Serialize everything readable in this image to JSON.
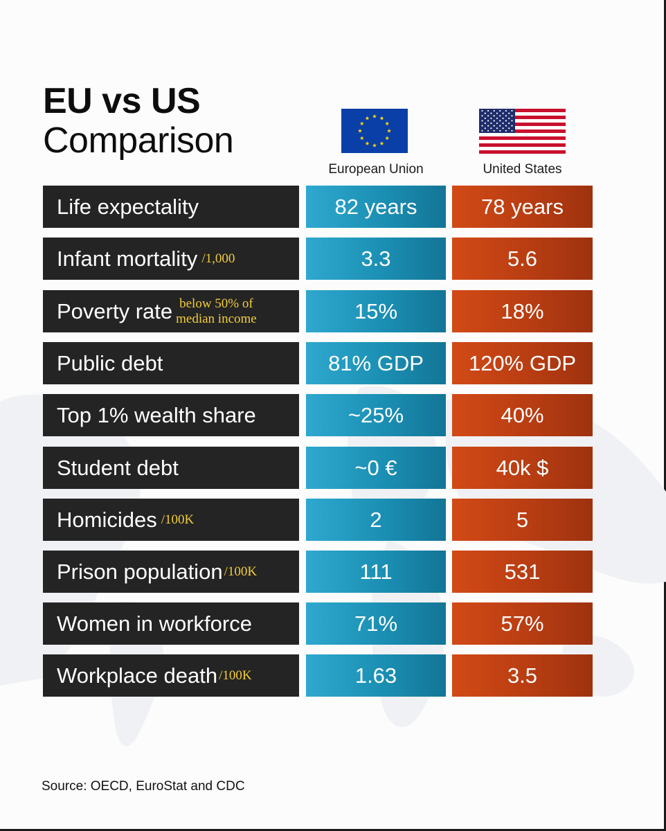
{
  "title": {
    "line1": "EU vs US",
    "line2": "Comparison"
  },
  "columns": {
    "eu": "European Union",
    "us": "United States"
  },
  "icons": {
    "eu_flag": "eu-flag-icon",
    "us_flag": "us-flag-icon"
  },
  "colors": {
    "eu_accent": "#1b8fb3",
    "us_accent": "#b83d12",
    "label_bg": "#242424",
    "unit_text": "#f3cd3a"
  },
  "rows": [
    {
      "label": "Life expectality",
      "unit": "",
      "eu": "82 years",
      "us": "78 years"
    },
    {
      "label": "Infant mortality",
      "unit": "/1,000",
      "eu": "3.3",
      "us": "5.6"
    },
    {
      "label": "Poverty rate",
      "unit_line1": "below 50% of",
      "unit_line2": "median income",
      "eu": "15%",
      "us": "18%"
    },
    {
      "label": "Public debt",
      "unit": "",
      "eu": "81% GDP",
      "us": "120% GDP"
    },
    {
      "label": "Top 1% wealth share",
      "unit": "",
      "eu": "~25%",
      "us": "40%"
    },
    {
      "label": "Student debt",
      "unit": "",
      "eu": "~0 €",
      "us": "40k $"
    },
    {
      "label": "Homicides",
      "unit": "/100K",
      "eu": "2",
      "us": "5"
    },
    {
      "label": "Prison population",
      "unit": "/100K",
      "eu": "111",
      "us": "531"
    },
    {
      "label": "Women in workforce",
      "unit": "",
      "eu": "71%",
      "us": "57%"
    },
    {
      "label": "Workplace death",
      "unit": "/100K",
      "eu": "1.63",
      "us": "3.5"
    }
  ],
  "source": "Source: OECD, EuroStat and CDC"
}
